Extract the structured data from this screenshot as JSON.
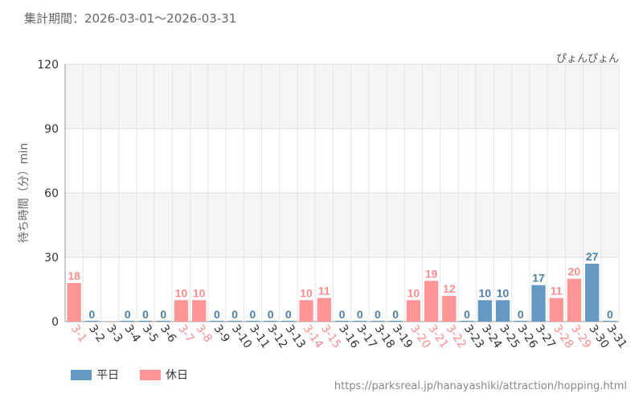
{
  "period_label": "集計期間：2026-03-01～2026-03-31",
  "attraction_name": "ぴょんぴょん",
  "source_url": "https://parksreal.jp/hanayashiki/attraction/hopping.html",
  "colors": {
    "weekday": "#6499c4",
    "holiday": "#ff9597",
    "holiday_text": "#ff8c8e",
    "weekday_text": "#4d7fab"
  },
  "legend": [
    {
      "label": "平日",
      "color": "#6499c4"
    },
    {
      "label": "休日",
      "color": "#ff9597"
    }
  ],
  "chart_data": {
    "type": "bar",
    "title": "",
    "xlabel": "",
    "ylabel": "待ち時間（分）min",
    "ylim": [
      0,
      120
    ],
    "yticks": [
      0,
      30,
      60,
      90,
      120
    ],
    "grid": true,
    "legend_position": "bottom-left",
    "categories": [
      "3-1",
      "3-2",
      "3-3",
      "3-4",
      "3-5",
      "3-6",
      "3-7",
      "3-8",
      "3-9",
      "3-10",
      "3-11",
      "3-12",
      "3-13",
      "3-14",
      "3-15",
      "3-16",
      "3-17",
      "3-18",
      "3-19",
      "3-20",
      "3-21",
      "3-22",
      "3-23",
      "3-24",
      "3-25",
      "3-26",
      "3-27",
      "3-28",
      "3-29",
      "3-30",
      "3-31"
    ],
    "values": [
      18,
      0,
      null,
      0,
      0,
      0,
      10,
      10,
      0,
      0,
      0,
      0,
      0,
      10,
      11,
      0,
      0,
      0,
      0,
      10,
      19,
      12,
      0,
      10,
      10,
      0,
      17,
      11,
      20,
      27,
      0
    ],
    "day_type": [
      "休日",
      "平日",
      "平日",
      "平日",
      "平日",
      "平日",
      "休日",
      "休日",
      "平日",
      "平日",
      "平日",
      "平日",
      "平日",
      "休日",
      "休日",
      "平日",
      "平日",
      "平日",
      "平日",
      "休日",
      "休日",
      "休日",
      "平日",
      "平日",
      "平日",
      "平日",
      "平日",
      "休日",
      "休日",
      "平日",
      "平日"
    ]
  }
}
